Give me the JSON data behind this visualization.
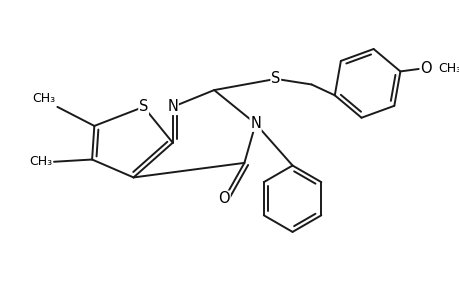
{
  "background_color": "#ffffff",
  "line_color": "#1a1a1a",
  "bond_width": 1.4,
  "font_size": 10.5,
  "fig_width": 4.6,
  "fig_height": 3.0,
  "dpi": 100,
  "xlim": [
    0,
    10
  ],
  "ylim": [
    0,
    6.5
  ]
}
